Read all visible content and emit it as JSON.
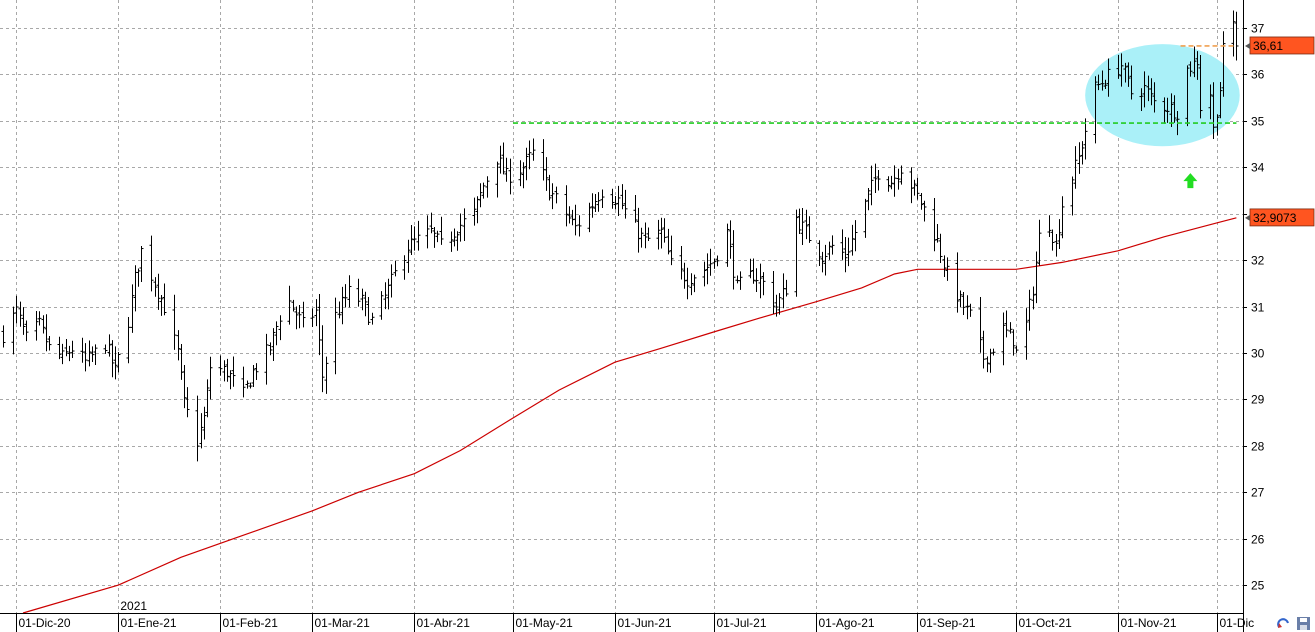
{
  "chart_data": {
    "type": "ohlc",
    "title": "",
    "xlabel": "",
    "ylabel": "",
    "ylim": [
      24.4,
      37.6
    ],
    "xlim": [
      "2020-11-26",
      "2021-12-09"
    ],
    "y_ticks": [
      25,
      26,
      27,
      28,
      29,
      30,
      31,
      32,
      33,
      34,
      35,
      36,
      37
    ],
    "x_ticks": [
      {
        "date": "2020-12-01",
        "label": "01-Dic-20"
      },
      {
        "date": "2021-01-01",
        "label": "01-Ene-21"
      },
      {
        "date": "2021-02-01",
        "label": "01-Feb-21"
      },
      {
        "date": "2021-03-01",
        "label": "01-Mar-21"
      },
      {
        "date": "2021-04-01",
        "label": "01-Abr-21"
      },
      {
        "date": "2021-05-01",
        "label": "01-May-21"
      },
      {
        "date": "2021-06-01",
        "label": "01-Jun-21"
      },
      {
        "date": "2021-07-01",
        "label": "01-Jul-21"
      },
      {
        "date": "2021-08-01",
        "label": "01-Ago-21"
      },
      {
        "date": "2021-09-01",
        "label": "01-Sep-21"
      },
      {
        "date": "2021-10-01",
        "label": "01-Oct-21"
      },
      {
        "date": "2021-11-01",
        "label": "01-Nov-21"
      },
      {
        "date": "2021-12-01",
        "label": "01-Dic"
      }
    ],
    "year_label": {
      "date": "2021-01-01",
      "label": "2021"
    },
    "grid": true,
    "price_anchors": [
      [
        "2020-11-27",
        30.4
      ],
      [
        "2020-12-01",
        30.9
      ],
      [
        "2020-12-04",
        30.3
      ],
      [
        "2020-12-08",
        30.6
      ],
      [
        "2020-12-11",
        30.1
      ],
      [
        "2020-12-15",
        29.9
      ],
      [
        "2020-12-18",
        30.1
      ],
      [
        "2020-12-22",
        29.8
      ],
      [
        "2020-12-28",
        30.2
      ],
      [
        "2020-12-31",
        29.6
      ],
      [
        "2021-01-04",
        30.7
      ],
      [
        "2021-01-06",
        31.6
      ],
      [
        "2021-01-08",
        32.2
      ],
      [
        "2021-01-12",
        31.5
      ],
      [
        "2021-01-15",
        31.0
      ],
      [
        "2021-01-19",
        30.0
      ],
      [
        "2021-01-21",
        28.9
      ],
      [
        "2021-01-25",
        28.1
      ],
      [
        "2021-01-27",
        28.6
      ],
      [
        "2021-01-29",
        29.7
      ],
      [
        "2021-02-03",
        29.6
      ],
      [
        "2021-02-08",
        29.1
      ],
      [
        "2021-02-11",
        29.6
      ],
      [
        "2021-02-16",
        30.1
      ],
      [
        "2021-02-19",
        30.8
      ],
      [
        "2021-02-22",
        31.1
      ],
      [
        "2021-02-26",
        30.6
      ],
      [
        "2021-03-02",
        30.9
      ],
      [
        "2021-03-04",
        29.5
      ],
      [
        "2021-03-08",
        30.8
      ],
      [
        "2021-03-12",
        31.3
      ],
      [
        "2021-03-16",
        31.1
      ],
      [
        "2021-03-19",
        30.7
      ],
      [
        "2021-03-23",
        31.2
      ],
      [
        "2021-03-26",
        31.7
      ],
      [
        "2021-03-30",
        32.3
      ],
      [
        "2021-04-06",
        32.6
      ],
      [
        "2021-04-09",
        32.3
      ],
      [
        "2021-04-14",
        32.7
      ],
      [
        "2021-04-19",
        33.0
      ],
      [
        "2021-04-22",
        33.6
      ],
      [
        "2021-04-26",
        34.2
      ],
      [
        "2021-04-29",
        33.8
      ],
      [
        "2021-05-04",
        34.0
      ],
      [
        "2021-05-07",
        34.3
      ],
      [
        "2021-05-12",
        33.5
      ],
      [
        "2021-05-17",
        33.0
      ],
      [
        "2021-05-20",
        32.7
      ],
      [
        "2021-05-25",
        33.2
      ],
      [
        "2021-05-28",
        33.5
      ],
      [
        "2021-06-02",
        33.3
      ],
      [
        "2021-06-07",
        32.7
      ],
      [
        "2021-06-10",
        32.4
      ],
      [
        "2021-06-15",
        32.6
      ],
      [
        "2021-06-18",
        31.9
      ],
      [
        "2021-06-23",
        31.6
      ],
      [
        "2021-06-28",
        31.8
      ],
      [
        "2021-07-01",
        32.0
      ],
      [
        "2021-07-05",
        32.6
      ],
      [
        "2021-07-08",
        31.4
      ],
      [
        "2021-07-13",
        31.7
      ],
      [
        "2021-07-16",
        31.5
      ],
      [
        "2021-07-20",
        31.0
      ],
      [
        "2021-07-23",
        31.4
      ],
      [
        "2021-07-26",
        32.9
      ],
      [
        "2021-07-29",
        32.6
      ],
      [
        "2021-08-03",
        32.1
      ],
      [
        "2021-08-06",
        32.3
      ],
      [
        "2021-08-10",
        32.1
      ],
      [
        "2021-08-13",
        32.6
      ],
      [
        "2021-08-17",
        33.4
      ],
      [
        "2021-08-20",
        33.9
      ],
      [
        "2021-08-24",
        33.7
      ],
      [
        "2021-08-27",
        34.0
      ],
      [
        "2021-08-31",
        33.5
      ],
      [
        "2021-09-03",
        33.1
      ],
      [
        "2021-09-07",
        32.4
      ],
      [
        "2021-09-10",
        31.7
      ],
      [
        "2021-09-14",
        31.1
      ],
      [
        "2021-09-17",
        30.8
      ],
      [
        "2021-09-21",
        29.9
      ],
      [
        "2021-09-23",
        30.0
      ],
      [
        "2021-09-27",
        30.5
      ],
      [
        "2021-09-30",
        30.3
      ],
      [
        "2021-10-01",
        30.0
      ],
      [
        "2021-10-04",
        30.6
      ],
      [
        "2021-10-06",
        31.4
      ],
      [
        "2021-10-08",
        32.5
      ],
      [
        "2021-10-11",
        32.8
      ],
      [
        "2021-10-13",
        32.3
      ],
      [
        "2021-10-15",
        33.2
      ],
      [
        "2021-10-18",
        33.8
      ],
      [
        "2021-10-20",
        34.2
      ],
      [
        "2021-10-25",
        35.7
      ],
      [
        "2021-10-28",
        35.9
      ],
      [
        "2021-11-02",
        36.2
      ],
      [
        "2021-11-05",
        35.6
      ],
      [
        "2021-11-09",
        35.7
      ],
      [
        "2021-11-12",
        35.4
      ],
      [
        "2021-11-16",
        35.3
      ],
      [
        "2021-11-19",
        35.2
      ],
      [
        "2021-11-22",
        36.1
      ],
      [
        "2021-11-25",
        36.3
      ],
      [
        "2021-11-26",
        35.3
      ],
      [
        "2021-11-29",
        35.6
      ],
      [
        "2021-11-30",
        34.8
      ],
      [
        "2021-12-02",
        35.7
      ],
      [
        "2021-12-03",
        36.5
      ],
      [
        "2021-12-06",
        37.1
      ],
      [
        "2021-12-07",
        36.61
      ]
    ],
    "moving_average": {
      "color": "#cc0000",
      "points": [
        [
          "2020-12-03",
          24.4
        ],
        [
          "2021-01-01",
          25.0
        ],
        [
          "2021-01-20",
          25.6
        ],
        [
          "2021-02-05",
          26.0
        ],
        [
          "2021-03-01",
          26.6
        ],
        [
          "2021-03-15",
          27.0
        ],
        [
          "2021-04-01",
          27.4
        ],
        [
          "2021-04-15",
          27.9
        ],
        [
          "2021-05-01",
          28.6
        ],
        [
          "2021-05-15",
          29.2
        ],
        [
          "2021-06-01",
          29.8
        ],
        [
          "2021-06-15",
          30.1
        ],
        [
          "2021-07-01",
          30.45
        ],
        [
          "2021-07-15",
          30.75
        ],
        [
          "2021-08-01",
          31.1
        ],
        [
          "2021-08-15",
          31.4
        ],
        [
          "2021-08-25",
          31.7
        ],
        [
          "2021-09-01",
          31.8
        ],
        [
          "2021-09-10",
          31.8
        ],
        [
          "2021-10-01",
          31.8
        ],
        [
          "2021-10-15",
          31.95
        ],
        [
          "2021-11-01",
          32.2
        ],
        [
          "2021-11-15",
          32.5
        ],
        [
          "2021-12-01",
          32.8
        ],
        [
          "2021-12-07",
          32.91
        ]
      ]
    },
    "annotations": {
      "support_line": {
        "value": 34.95,
        "from": "2021-05-01",
        "to": "2021-12-07",
        "color": "#22cc22",
        "style": "dashed"
      },
      "resistance_line": {
        "value": 36.61,
        "from": "2021-11-20",
        "to": "2021-12-07",
        "color": "#f0a050",
        "style": "dashed"
      },
      "ellipse": {
        "x_from": "2021-10-22",
        "x_to": "2021-12-08",
        "y_from": 34.45,
        "y_to": 36.65,
        "color": "#aaf0f8"
      },
      "arrow": {
        "date": "2021-11-23",
        "value": 33.7,
        "direction": "up",
        "color": "#22dd22"
      }
    },
    "price_tags": [
      {
        "value": 36.61,
        "label": "36,61",
        "color": "#ff5520"
      },
      {
        "value": 32.9073,
        "label": "32,9073",
        "color": "#ff5520"
      }
    ]
  }
}
